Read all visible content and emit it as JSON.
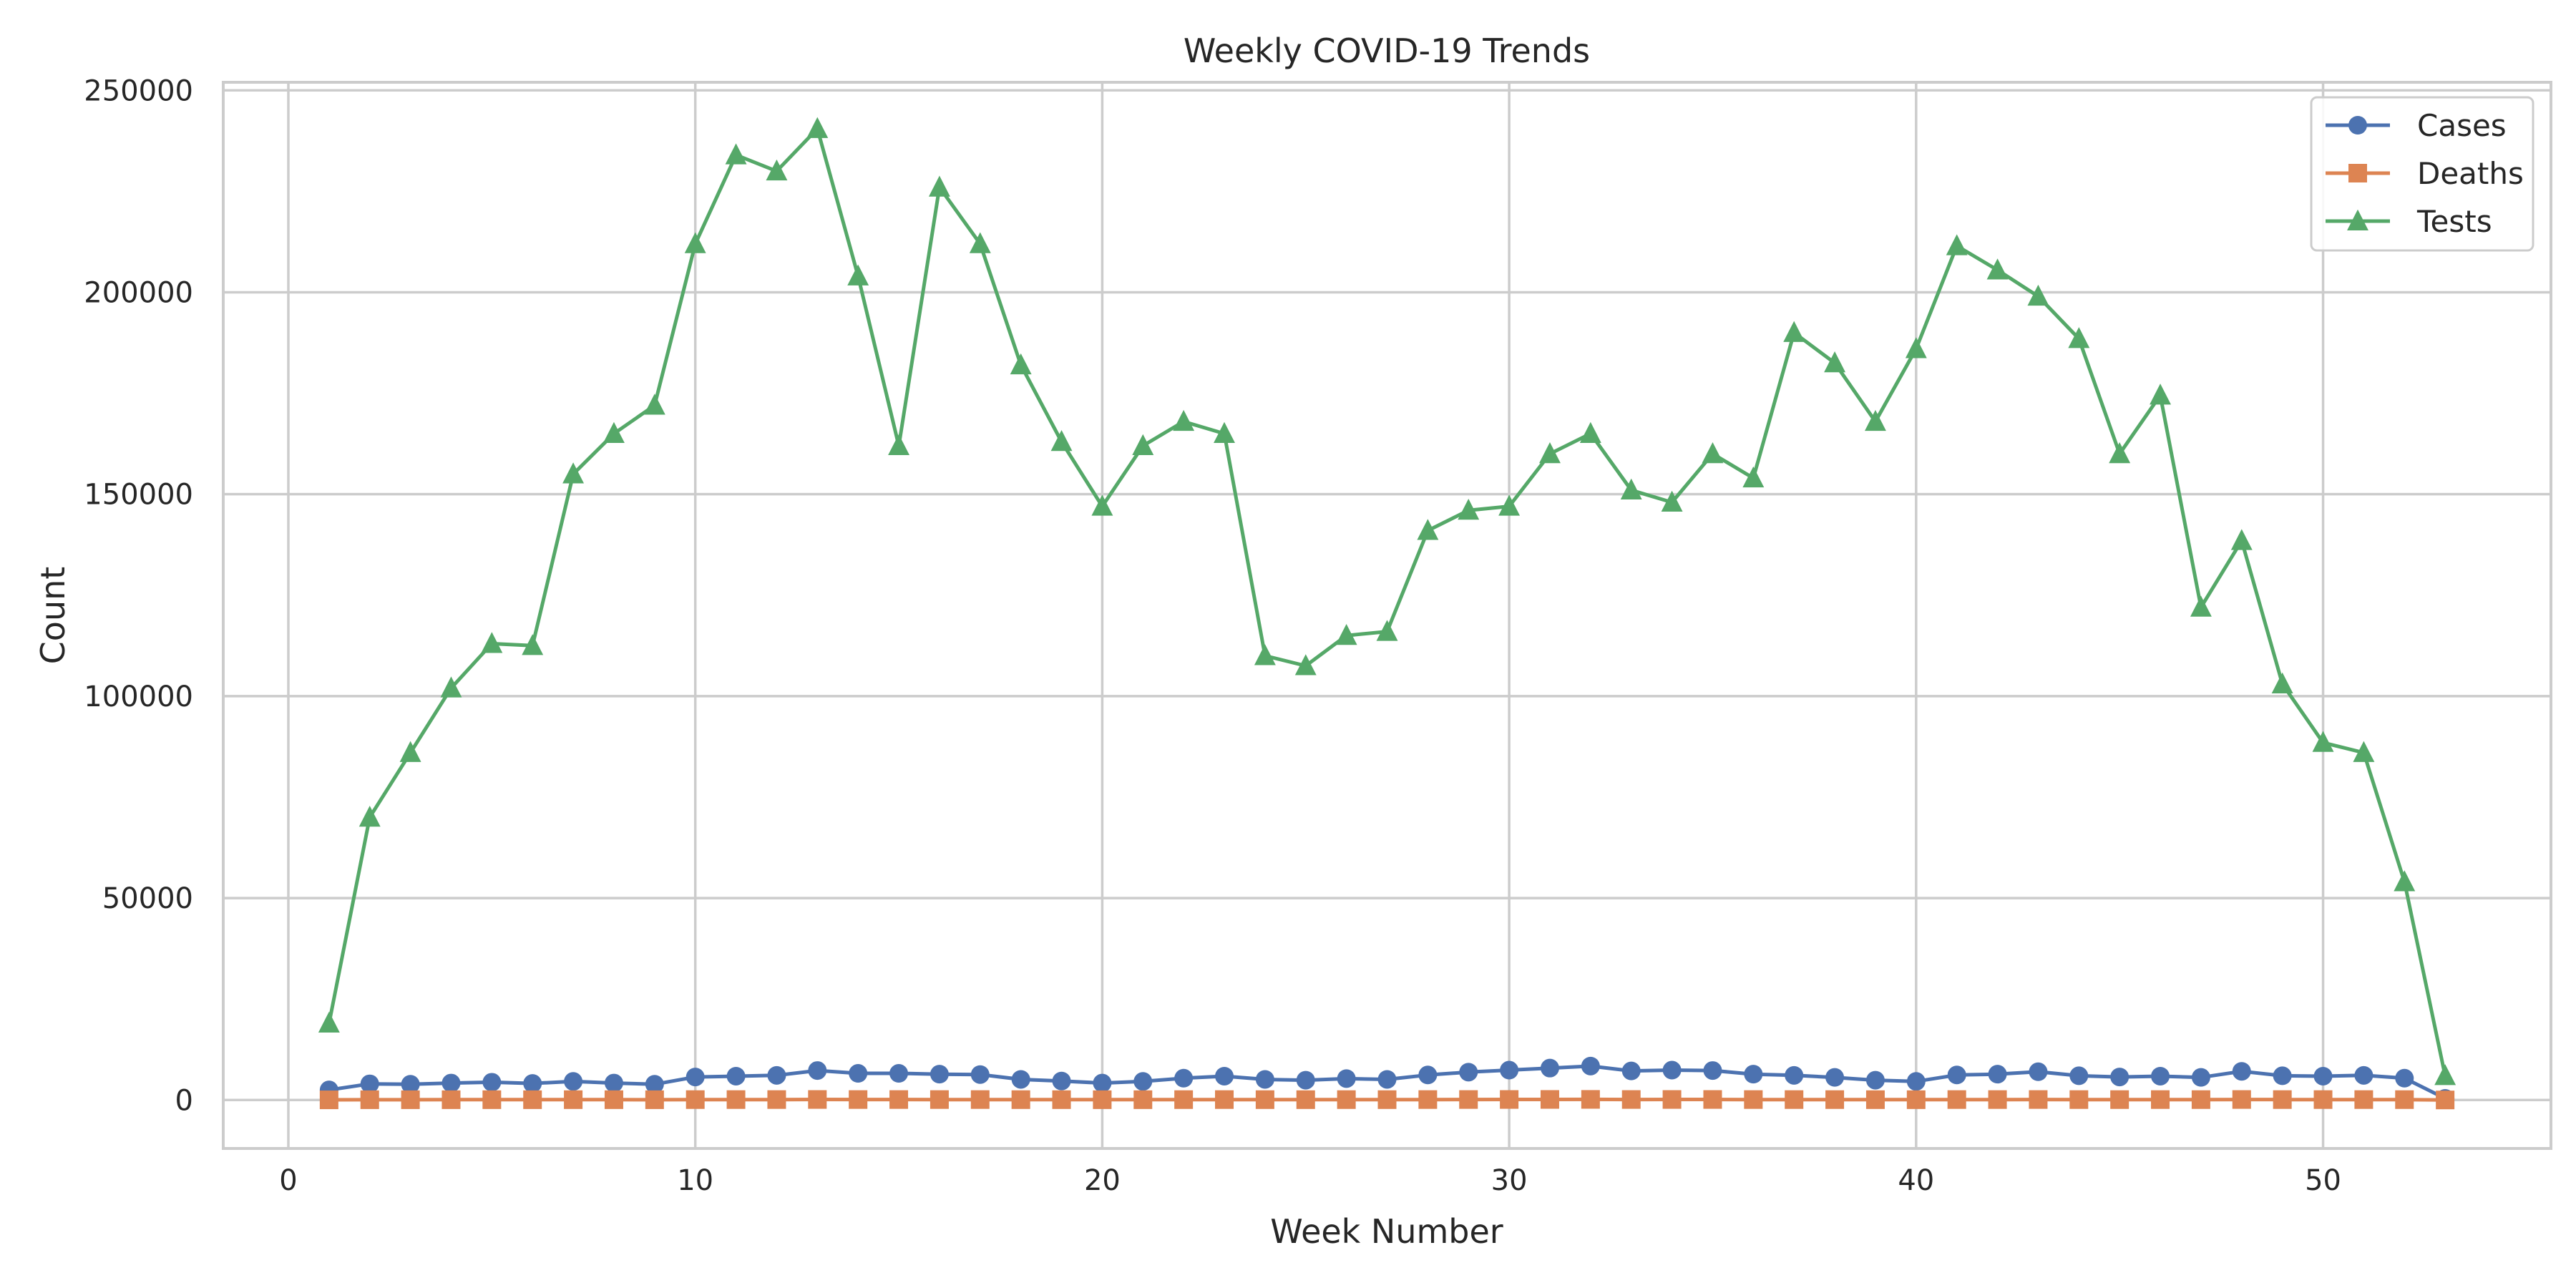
{
  "chart_data": {
    "type": "line",
    "title": "Weekly COVID-19 Trends",
    "xlabel": "Week Number",
    "ylabel": "Count",
    "xlim": [
      -1.6,
      55.6
    ],
    "ylim": [
      -12000,
      252000
    ],
    "xticks": [
      0,
      10,
      20,
      30,
      40,
      50
    ],
    "yticks": [
      0,
      50000,
      100000,
      150000,
      200000,
      250000
    ],
    "grid": true,
    "legend_position": "top-right",
    "x": [
      1,
      2,
      3,
      4,
      5,
      6,
      7,
      8,
      9,
      10,
      11,
      12,
      13,
      14,
      15,
      16,
      17,
      18,
      19,
      20,
      21,
      22,
      23,
      24,
      25,
      26,
      27,
      28,
      29,
      30,
      31,
      32,
      33,
      34,
      35,
      36,
      37,
      38,
      39,
      40,
      41,
      42,
      43,
      44,
      45,
      46,
      47,
      48,
      49,
      50,
      51,
      52,
      53
    ],
    "series": [
      {
        "name": "Cases",
        "color": "#4c72b0",
        "marker": "circle",
        "values": [
          2500,
          4000,
          3900,
          4200,
          4400,
          4100,
          4600,
          4200,
          3900,
          5700,
          5900,
          6100,
          7300,
          6600,
          6600,
          6400,
          6300,
          5100,
          4700,
          4200,
          4600,
          5400,
          5900,
          5100,
          4900,
          5300,
          5100,
          6200,
          6900,
          7400,
          7900,
          8400,
          7200,
          7400,
          7300,
          6400,
          6100,
          5600,
          4900,
          4600,
          6200,
          6400,
          7000,
          6000,
          5700,
          5900,
          5600,
          7100,
          6000,
          5900,
          6100,
          5400,
          400
        ]
      },
      {
        "name": "Deaths",
        "color": "#dd8452",
        "marker": "square",
        "values": [
          40,
          70,
          70,
          75,
          80,
          75,
          85,
          80,
          70,
          100,
          105,
          110,
          130,
          115,
          115,
          110,
          110,
          90,
          85,
          75,
          80,
          95,
          105,
          90,
          85,
          95,
          90,
          110,
          120,
          130,
          140,
          150,
          125,
          130,
          130,
          110,
          105,
          100,
          85,
          80,
          110,
          110,
          120,
          105,
          100,
          105,
          100,
          125,
          105,
          105,
          105,
          95,
          10
        ]
      },
      {
        "name": "Tests",
        "color": "#55a868",
        "marker": "triangle",
        "values": [
          19000,
          70000,
          86000,
          102000,
          113000,
          112500,
          155000,
          165000,
          172000,
          212000,
          234000,
          230000,
          240500,
          204000,
          162000,
          226000,
          212000,
          182000,
          163000,
          147000,
          162000,
          168000,
          165000,
          110000,
          107500,
          115000,
          116000,
          141000,
          146000,
          147000,
          160000,
          165000,
          151000,
          148000,
          160000,
          154000,
          190000,
          182500,
          168000,
          186000,
          211500,
          205500,
          199000,
          188500,
          160000,
          174500,
          122000,
          138500,
          103000,
          88500,
          86000,
          54000,
          6000
        ]
      }
    ]
  }
}
